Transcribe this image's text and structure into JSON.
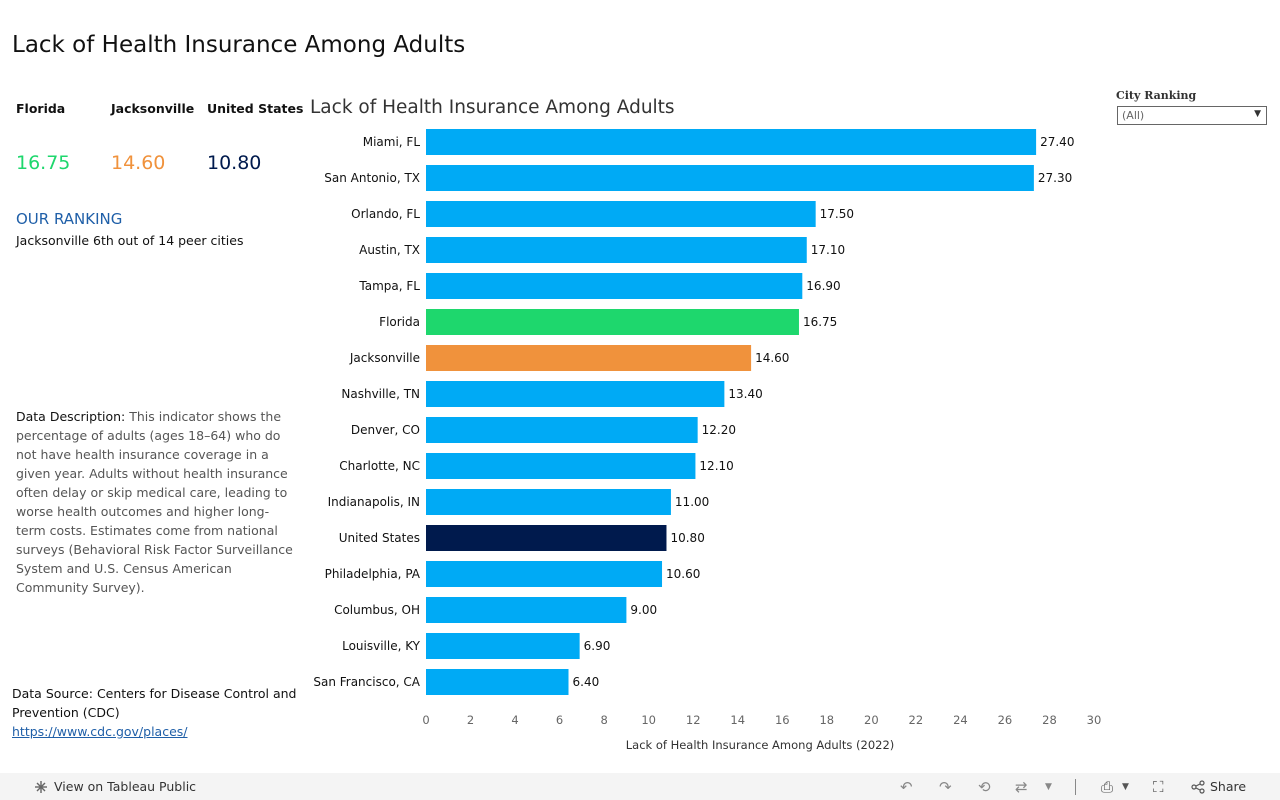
{
  "page": {
    "title": "Lack of Health Insurance Among Adults"
  },
  "kpis": [
    {
      "label": "Florida",
      "value": "16.75",
      "color": "#1ed76d"
    },
    {
      "label": "Jacksonville",
      "value": "14.60",
      "color": "#f0923c"
    },
    {
      "label": "United States",
      "value": "10.80",
      "color": "#001a4d"
    }
  ],
  "ranking": {
    "title": "OUR RANKING",
    "text": "Jacksonville 6th out of 14 peer cities"
  },
  "description": {
    "lead": "Data Description:",
    "body": " This indicator shows the percentage of adults (ages 18–64) who do not have health insurance coverage in a given year. Adults without health insurance often delay or skip medical care, leading to worse health outcomes and higher long-term costs. Estimates come from national surveys (Behavioral Risk Factor Surveillance System and U.S. Census American Community Survey)."
  },
  "source": {
    "lead": "Data Source:",
    "body": " Centers for Disease Control and Prevention (CDC)",
    "link": "https://www.cdc.gov/places/"
  },
  "filter": {
    "label": "City  Ranking",
    "value": "(All)"
  },
  "footer": {
    "view_label": "View on Tableau Public",
    "share_label": "Share"
  },
  "colors": {
    "default_bar": "#00aaf5",
    "florida": "#1ed76d",
    "jacksonville": "#f0923c",
    "united_states": "#001a4d"
  },
  "chart_data": {
    "type": "bar",
    "orientation": "horizontal",
    "title": "Lack of Health Insurance Among Adults",
    "xlabel": "Lack of Health Insurance Among Adults (2022)",
    "ylabel": "",
    "xlim": [
      0,
      30
    ],
    "xticks": [
      0,
      2,
      4,
      6,
      8,
      10,
      12,
      14,
      16,
      18,
      20,
      22,
      24,
      26,
      28,
      30
    ],
    "categories": [
      "Miami, FL",
      "San Antonio, TX",
      "Orlando, FL",
      "Austin, TX",
      "Tampa, FL",
      "Florida",
      "Jacksonville",
      "Nashville, TN",
      "Denver, CO",
      "Charlotte, NC",
      "Indianapolis, IN",
      "United States",
      "Philadelphia, PA",
      "Columbus, OH",
      "Louisville, KY",
      "San Francisco, CA"
    ],
    "values": [
      27.4,
      27.3,
      17.5,
      17.1,
      16.9,
      16.75,
      14.6,
      13.4,
      12.2,
      12.1,
      11.0,
      10.8,
      10.6,
      9.0,
      6.9,
      6.4
    ],
    "value_labels": [
      "27.40",
      "27.30",
      "17.50",
      "17.10",
      "16.90",
      "16.75",
      "14.60",
      "13.40",
      "12.20",
      "12.10",
      "11.00",
      "10.80",
      "10.60",
      "9.00",
      "6.90",
      "6.40"
    ],
    "highlight": {
      "Florida": "#1ed76d",
      "Jacksonville": "#f0923c",
      "United States": "#001a4d"
    },
    "grid": false,
    "legend": "none"
  }
}
